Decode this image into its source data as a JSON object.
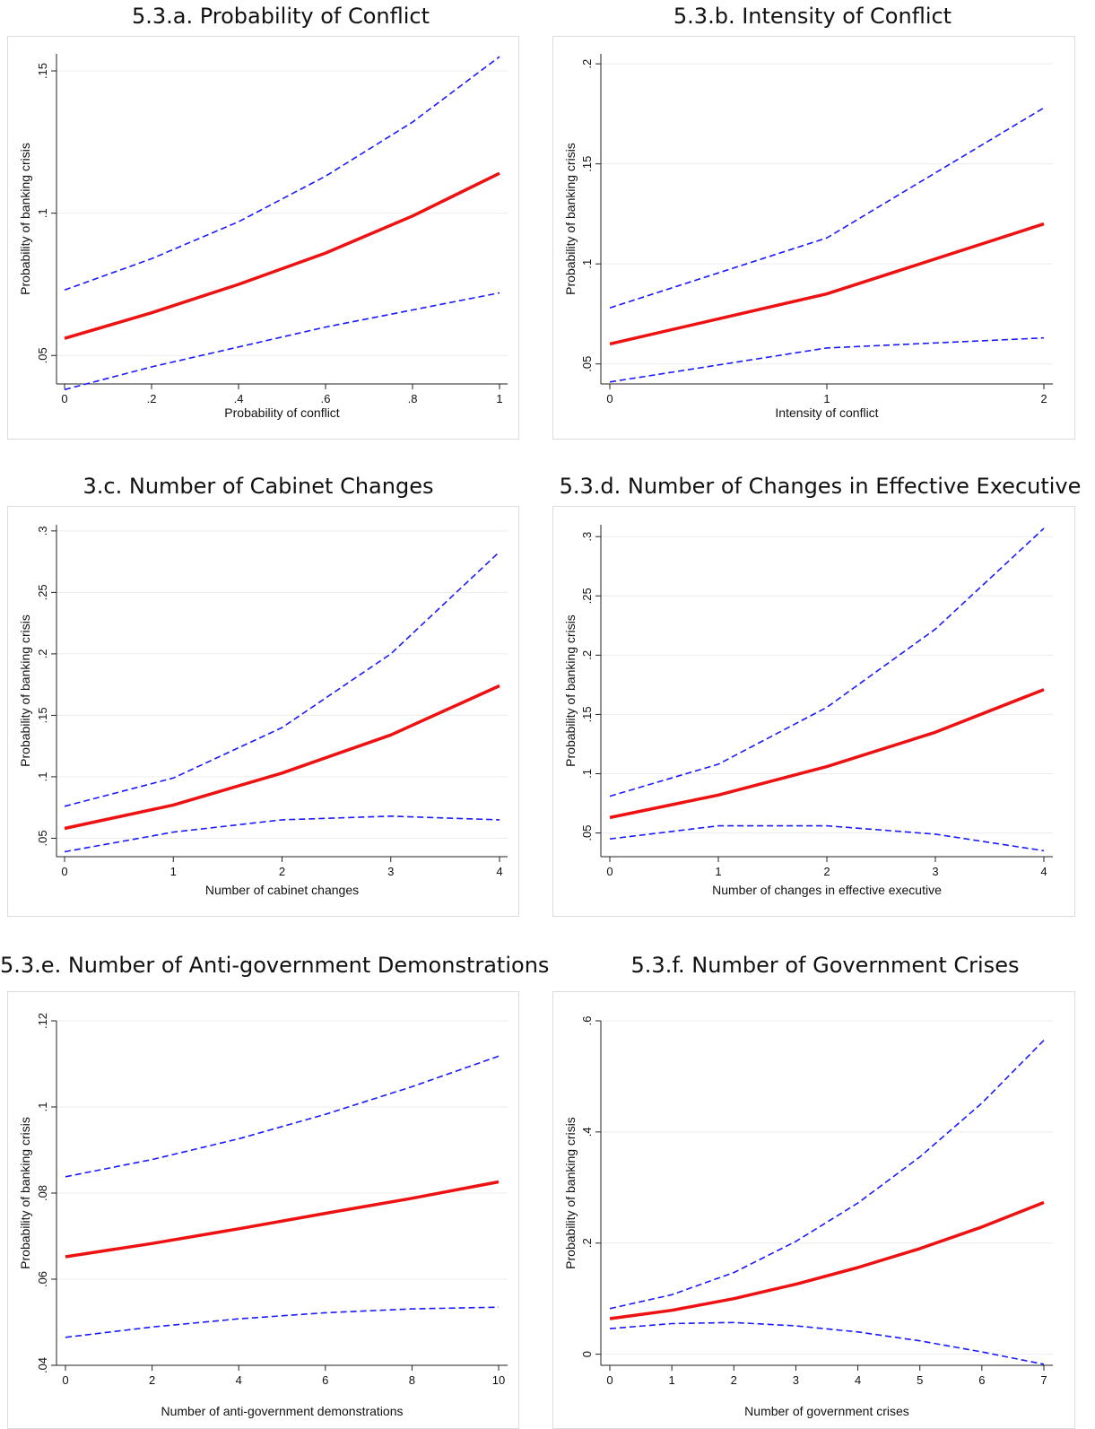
{
  "chart_data": [
    {
      "type": "line",
      "title": "5.3.a. Probability of Conflict",
      "xlabel": "Probability of conflict",
      "ylabel": "Probability of banking crisis",
      "xlim": [
        0,
        1
      ],
      "ylim": [
        0.04,
        0.156
      ],
      "x_ticks": [
        0,
        0.2,
        0.4,
        0.6,
        0.8,
        1
      ],
      "x_tick_labels": [
        "0",
        ".2",
        ".4",
        ".6",
        ".8",
        "1"
      ],
      "y_ticks": [
        0.05,
        0.1,
        0.15
      ],
      "y_tick_labels": [
        ".05",
        ".1",
        ".15"
      ],
      "grid": true,
      "x": [
        0,
        0.2,
        0.4,
        0.6,
        0.8,
        1
      ],
      "series": [
        {
          "values": [
            0.073,
            0.084,
            0.097,
            0.113,
            0.132,
            0.155
          ],
          "color": "#1a1aff",
          "style": "dashed"
        },
        {
          "values": [
            0.056,
            0.065,
            0.075,
            0.086,
            0.099,
            0.114
          ],
          "color": "#ee1111",
          "style": "solid"
        },
        {
          "values": [
            0.038,
            0.046,
            0.053,
            0.06,
            0.066,
            0.072
          ],
          "color": "#1a1aff",
          "style": "dashed"
        }
      ]
    },
    {
      "type": "line",
      "title": "5.3.b. Intensity of Conflict",
      "xlabel": "Intensity of conflict",
      "ylabel": "Probability of banking crisis",
      "xlim": [
        0,
        2
      ],
      "ylim": [
        0.04,
        0.205
      ],
      "x_ticks": [
        0,
        1,
        2
      ],
      "x_tick_labels": [
        "0",
        "1",
        "2"
      ],
      "y_ticks": [
        0.05,
        0.1,
        0.15,
        0.2
      ],
      "y_tick_labels": [
        ".05",
        ".1",
        ".15",
        ".2"
      ],
      "grid": true,
      "x": [
        0,
        1,
        2
      ],
      "series": [
        {
          "values": [
            0.078,
            0.113,
            0.178
          ],
          "color": "#1a1aff",
          "style": "dashed"
        },
        {
          "values": [
            0.06,
            0.085,
            0.12
          ],
          "color": "#ee1111",
          "style": "solid"
        },
        {
          "values": [
            0.041,
            0.058,
            0.063
          ],
          "color": "#1a1aff",
          "style": "dashed"
        }
      ]
    },
    {
      "type": "line",
      "title": "3.c. Number of Cabinet Changes",
      "xlabel": "Number of cabinet changes",
      "ylabel": "Probability of banking crisis",
      "xlim": [
        0,
        4
      ],
      "ylim": [
        0.035,
        0.305
      ],
      "x_ticks": [
        0,
        1,
        2,
        3,
        4
      ],
      "x_tick_labels": [
        "0",
        "1",
        "2",
        "3",
        "4"
      ],
      "y_ticks": [
        0.05,
        0.1,
        0.15,
        0.2,
        0.25,
        0.3
      ],
      "y_tick_labels": [
        ".05",
        ".1",
        ".15",
        ".2",
        ".25",
        ".3"
      ],
      "grid": true,
      "x": [
        0,
        1,
        2,
        3,
        4
      ],
      "series": [
        {
          "values": [
            0.076,
            0.099,
            0.14,
            0.2,
            0.283
          ],
          "color": "#1a1aff",
          "style": "dashed"
        },
        {
          "values": [
            0.058,
            0.077,
            0.103,
            0.134,
            0.174
          ],
          "color": "#ee1111",
          "style": "solid"
        },
        {
          "values": [
            0.039,
            0.055,
            0.065,
            0.068,
            0.065
          ],
          "color": "#1a1aff",
          "style": "dashed"
        }
      ]
    },
    {
      "type": "line",
      "title": "5.3.d. Number of Changes in Effective Executive",
      "xlabel": "Number of changes in effective executive",
      "ylabel": "Probability of banking crisis",
      "xlim": [
        0,
        4
      ],
      "ylim": [
        0.03,
        0.31
      ],
      "x_ticks": [
        0,
        1,
        2,
        3,
        4
      ],
      "x_tick_labels": [
        "0",
        "1",
        "2",
        "3",
        "4"
      ],
      "y_ticks": [
        0.05,
        0.1,
        0.15,
        0.2,
        0.25,
        0.3
      ],
      "y_tick_labels": [
        ".05",
        ".1",
        ".15",
        ".2",
        ".25",
        ".3"
      ],
      "grid": true,
      "x": [
        0,
        1,
        2,
        3,
        4
      ],
      "series": [
        {
          "values": [
            0.081,
            0.108,
            0.156,
            0.222,
            0.307
          ],
          "color": "#1a1aff",
          "style": "dashed"
        },
        {
          "values": [
            0.063,
            0.082,
            0.106,
            0.135,
            0.171
          ],
          "color": "#ee1111",
          "style": "solid"
        },
        {
          "values": [
            0.045,
            0.056,
            0.056,
            0.049,
            0.035
          ],
          "color": "#1a1aff",
          "style": "dashed"
        }
      ]
    },
    {
      "type": "line",
      "title": "5.3.e. Number of Anti-government  Demonstrations",
      "xlabel": "Number of anti-government demonstrations",
      "ylabel": "Probability of banking crisis",
      "xlim": [
        0,
        10
      ],
      "ylim": [
        0.04,
        0.12
      ],
      "x_ticks": [
        0,
        2,
        4,
        6,
        8,
        10
      ],
      "x_tick_labels": [
        "0",
        "2",
        "4",
        "6",
        "8",
        "10"
      ],
      "y_ticks": [
        0.04,
        0.06,
        0.08,
        0.1,
        0.12
      ],
      "y_tick_labels": [
        ".04",
        ".06",
        ".08",
        ".1",
        ".12"
      ],
      "grid": true,
      "x": [
        0,
        2,
        4,
        6,
        8,
        10
      ],
      "series": [
        {
          "values": [
            0.0838,
            0.0878,
            0.0926,
            0.0983,
            0.1047,
            0.1118
          ],
          "color": "#1a1aff",
          "style": "dashed"
        },
        {
          "values": [
            0.0652,
            0.0683,
            0.0717,
            0.0753,
            0.0788,
            0.0826
          ],
          "color": "#ee1111",
          "style": "solid"
        },
        {
          "values": [
            0.0465,
            0.0489,
            0.0508,
            0.0522,
            0.0531,
            0.0535
          ],
          "color": "#1a1aff",
          "style": "dashed"
        }
      ]
    },
    {
      "type": "line",
      "title": "5.3.f. Number of Government  Crises",
      "xlabel": "Number of government crises",
      "ylabel": "Probability of banking crisis",
      "xlim": [
        0,
        7
      ],
      "ylim": [
        -0.02,
        0.6
      ],
      "x_ticks": [
        0,
        1,
        2,
        3,
        4,
        5,
        6,
        7
      ],
      "x_tick_labels": [
        "0",
        "1",
        "2",
        "3",
        "4",
        "5",
        "6",
        "7"
      ],
      "y_ticks": [
        0,
        0.2,
        0.4,
        0.6
      ],
      "y_tick_labels": [
        "0",
        ".2",
        ".4",
        ".6"
      ],
      "grid": true,
      "x": [
        0,
        1,
        2,
        3,
        4,
        5,
        6,
        7
      ],
      "series": [
        {
          "values": [
            0.082,
            0.107,
            0.147,
            0.203,
            0.272,
            0.355,
            0.452,
            0.565
          ],
          "color": "#1a1aff",
          "style": "dashed"
        },
        {
          "values": [
            0.064,
            0.079,
            0.1,
            0.126,
            0.156,
            0.19,
            0.229,
            0.273
          ],
          "color": "#ee1111",
          "style": "solid"
        },
        {
          "values": [
            0.046,
            0.055,
            0.057,
            0.051,
            0.04,
            0.024,
            0.004,
            -0.018
          ],
          "color": "#1a1aff",
          "style": "dashed"
        }
      ]
    }
  ]
}
